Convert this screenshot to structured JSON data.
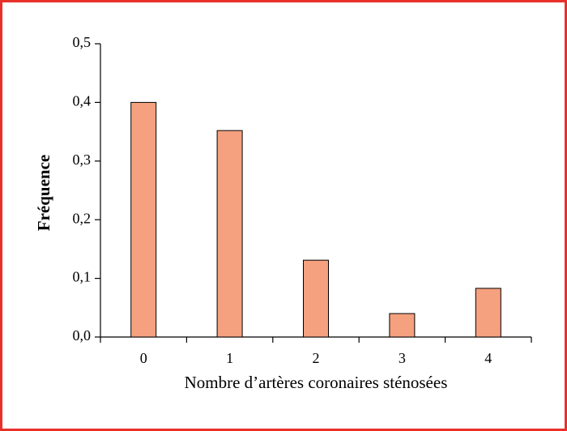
{
  "chart_data": {
    "type": "bar",
    "x_label": "Nombre d’artères coronaires sténosées",
    "y_label": "Fréquence",
    "categories": [
      "0",
      "1",
      "2",
      "3",
      "4"
    ],
    "values": [
      0.4,
      0.352,
      0.131,
      0.04,
      0.083
    ],
    "color": "#f5a07f",
    "ylim": [
      0,
      0.5
    ],
    "yticks": [
      {
        "value": 0,
        "label": "0,0"
      },
      {
        "value": 0.1,
        "label": "0,1"
      },
      {
        "value": 0.2,
        "label": "0,2"
      },
      {
        "value": 0.3,
        "label": "0,3"
      },
      {
        "value": 0.4,
        "label": "0,4"
      },
      {
        "value": 0.5,
        "label": "0,5"
      }
    ],
    "grid": false
  }
}
